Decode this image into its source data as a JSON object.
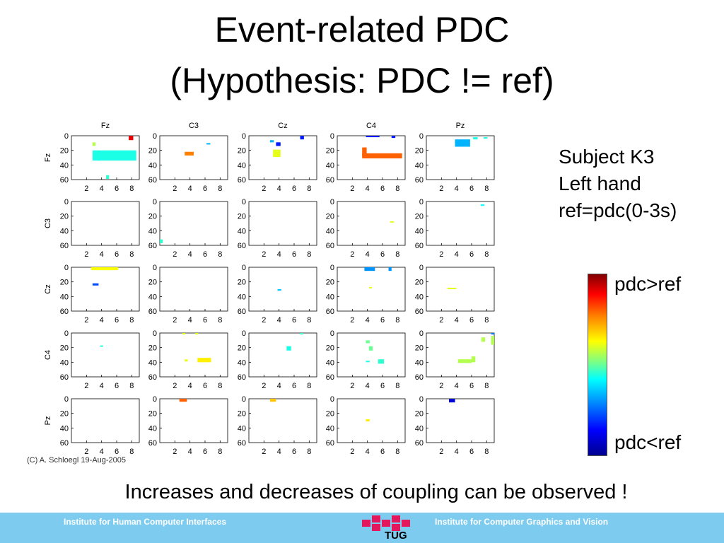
{
  "slide": {
    "title_line1": "Event-related PDC",
    "title_line2": "(Hypothesis: PDC != ref)",
    "subject": "Subject K3",
    "hand": "Left hand",
    "ref": "ref=pdc(0-3s)",
    "caption": "Increases and decreases of coupling can be observed !",
    "credit": "(C) A. Schloegl 19-Aug-2005"
  },
  "colorbar": {
    "high_label": "pdc>ref",
    "low_label": "pdc<ref"
  },
  "footer": {
    "left": "Institute for Human Computer Interfaces",
    "right": "Institute for Computer Graphics and Vision",
    "logo_text": "TUG"
  },
  "chart_data": {
    "type": "heatmap",
    "channels": [
      "Fz",
      "C3",
      "Cz",
      "C4",
      "Pz"
    ],
    "x_ticks": [
      "2",
      "4",
      "6",
      "8"
    ],
    "y_ticks": [
      "0",
      "20",
      "40",
      "60"
    ],
    "xlim": [
      0,
      9
    ],
    "ylim": [
      0,
      60
    ],
    "colorscale": [
      "#00008f",
      "#0000ff",
      "#0080ff",
      "#00ffff",
      "#80ff80",
      "#ffff00",
      "#ff8000",
      "#ff0000",
      "#800000"
    ],
    "cells": [
      {
        "row": 0,
        "col": 0,
        "x": 7.6,
        "y": 0,
        "w": 0.6,
        "h": 6,
        "v": 0.9
      },
      {
        "row": 0,
        "col": 0,
        "x": 2.8,
        "y": 9,
        "w": 0.4,
        "h": 5,
        "v": 0.55
      },
      {
        "row": 0,
        "col": 0,
        "x": 2.8,
        "y": 20,
        "w": 5.8,
        "h": 14,
        "v": 0.4
      },
      {
        "row": 0,
        "col": 0,
        "x": 4.6,
        "y": 54,
        "w": 0.4,
        "h": 5,
        "v": 0.42
      },
      {
        "row": 0,
        "col": 1,
        "x": 3.3,
        "y": 22,
        "w": 1.2,
        "h": 5,
        "v": 0.75
      },
      {
        "row": 0,
        "col": 1,
        "x": 6.2,
        "y": 10,
        "w": 0.5,
        "h": 2,
        "v": 0.3
      },
      {
        "row": 0,
        "col": 2,
        "x": 2.8,
        "y": 6,
        "w": 0.5,
        "h": 3,
        "v": 0.3
      },
      {
        "row": 0,
        "col": 2,
        "x": 3.6,
        "y": 9,
        "w": 0.6,
        "h": 5,
        "v": 0.15
      },
      {
        "row": 0,
        "col": 2,
        "x": 6.8,
        "y": 0,
        "w": 0.5,
        "h": 5,
        "v": 0.15
      },
      {
        "row": 0,
        "col": 2,
        "x": 3.2,
        "y": 19,
        "w": 1.0,
        "h": 10,
        "v": 0.6
      },
      {
        "row": 0,
        "col": 3,
        "x": 3.8,
        "y": 0,
        "w": 1.8,
        "h": 2,
        "v": 0.15
      },
      {
        "row": 0,
        "col": 3,
        "x": 7.2,
        "y": 0,
        "w": 0.5,
        "h": 3,
        "v": 0.15
      },
      {
        "row": 0,
        "col": 3,
        "x": 3.3,
        "y": 16,
        "w": 0.6,
        "h": 12,
        "v": 0.78
      },
      {
        "row": 0,
        "col": 3,
        "x": 3.3,
        "y": 24,
        "w": 5.3,
        "h": 7,
        "v": 0.78
      },
      {
        "row": 0,
        "col": 4,
        "x": 3.8,
        "y": 5,
        "w": 2.0,
        "h": 10,
        "v": 0.3
      },
      {
        "row": 0,
        "col": 4,
        "x": 6.2,
        "y": 2,
        "w": 0.6,
        "h": 3,
        "v": 0.4
      },
      {
        "row": 0,
        "col": 4,
        "x": 7.6,
        "y": 2,
        "w": 0.5,
        "h": 2,
        "v": 0.4
      },
      {
        "row": 1,
        "col": 1,
        "x": 0,
        "y": 52,
        "w": 0.4,
        "h": 5,
        "v": 0.42
      },
      {
        "row": 1,
        "col": 3,
        "x": 7.0,
        "y": 27,
        "w": 0.5,
        "h": 2,
        "v": 0.6
      },
      {
        "row": 1,
        "col": 4,
        "x": 7.2,
        "y": 4,
        "w": 0.5,
        "h": 2,
        "v": 0.38
      },
      {
        "row": 2,
        "col": 0,
        "x": 2.6,
        "y": 0,
        "w": 3.6,
        "h": 4,
        "v": 0.62
      },
      {
        "row": 2,
        "col": 0,
        "x": 2.8,
        "y": 22,
        "w": 0.8,
        "h": 3,
        "v": 0.2
      },
      {
        "row": 2,
        "col": 2,
        "x": 3.8,
        "y": 30,
        "w": 0.5,
        "h": 2,
        "v": 0.32
      },
      {
        "row": 2,
        "col": 3,
        "x": 3.6,
        "y": 0,
        "w": 1.4,
        "h": 5,
        "v": 0.27
      },
      {
        "row": 2,
        "col": 3,
        "x": 6.8,
        "y": 0,
        "w": 0.4,
        "h": 5,
        "v": 0.27
      },
      {
        "row": 2,
        "col": 3,
        "x": 4.2,
        "y": 27,
        "w": 0.4,
        "h": 2,
        "v": 0.6
      },
      {
        "row": 2,
        "col": 4,
        "x": 2.8,
        "y": 28,
        "w": 1.2,
        "h": 2,
        "v": 0.6
      },
      {
        "row": 3,
        "col": 0,
        "x": 3.8,
        "y": 17,
        "w": 0.4,
        "h": 2,
        "v": 0.42
      },
      {
        "row": 3,
        "col": 1,
        "x": 3.0,
        "y": 0,
        "w": 0.4,
        "h": 2,
        "v": 0.6
      },
      {
        "row": 3,
        "col": 1,
        "x": 4.7,
        "y": 0,
        "w": 0.4,
        "h": 2,
        "v": 0.6
      },
      {
        "row": 3,
        "col": 1,
        "x": 3.3,
        "y": 36,
        "w": 0.4,
        "h": 3,
        "v": 0.6
      },
      {
        "row": 3,
        "col": 1,
        "x": 5.0,
        "y": 34,
        "w": 1.8,
        "h": 6,
        "v": 0.64
      },
      {
        "row": 3,
        "col": 2,
        "x": 5.0,
        "y": 18,
        "w": 0.6,
        "h": 6,
        "v": 0.4
      },
      {
        "row": 3,
        "col": 2,
        "x": 6.8,
        "y": 0,
        "w": 0.4,
        "h": 2,
        "v": 0.42
      },
      {
        "row": 3,
        "col": 3,
        "x": 3.8,
        "y": 10,
        "w": 0.5,
        "h": 4,
        "v": 0.48
      },
      {
        "row": 3,
        "col": 3,
        "x": 4.2,
        "y": 18,
        "w": 0.5,
        "h": 6,
        "v": 0.48
      },
      {
        "row": 3,
        "col": 3,
        "x": 3.8,
        "y": 38,
        "w": 0.5,
        "h": 2,
        "v": 0.4
      },
      {
        "row": 3,
        "col": 3,
        "x": 5.4,
        "y": 36,
        "w": 0.8,
        "h": 6,
        "v": 0.42
      },
      {
        "row": 3,
        "col": 4,
        "x": 4.2,
        "y": 36,
        "w": 1.8,
        "h": 5,
        "v": 0.55
      },
      {
        "row": 3,
        "col": 4,
        "x": 6.0,
        "y": 32,
        "w": 0.5,
        "h": 8,
        "v": 0.55
      },
      {
        "row": 3,
        "col": 4,
        "x": 7.3,
        "y": 6,
        "w": 0.5,
        "h": 6,
        "v": 0.55
      },
      {
        "row": 3,
        "col": 4,
        "x": 8.6,
        "y": 4,
        "w": 0.4,
        "h": 12,
        "v": 0.55
      },
      {
        "row": 3,
        "col": 4,
        "x": 8.6,
        "y": 0,
        "w": 0.4,
        "h": 2,
        "v": 0.25
      },
      {
        "row": 4,
        "col": 1,
        "x": 2.6,
        "y": 0,
        "w": 1.0,
        "h": 4,
        "v": 0.78
      },
      {
        "row": 4,
        "col": 2,
        "x": 2.8,
        "y": 0,
        "w": 0.8,
        "h": 4,
        "v": 0.68
      },
      {
        "row": 4,
        "col": 3,
        "x": 3.8,
        "y": 28,
        "w": 0.5,
        "h": 3,
        "v": 0.64
      },
      {
        "row": 4,
        "col": 4,
        "x": 3.0,
        "y": 0,
        "w": 0.8,
        "h": 5,
        "v": 0.08
      }
    ]
  }
}
